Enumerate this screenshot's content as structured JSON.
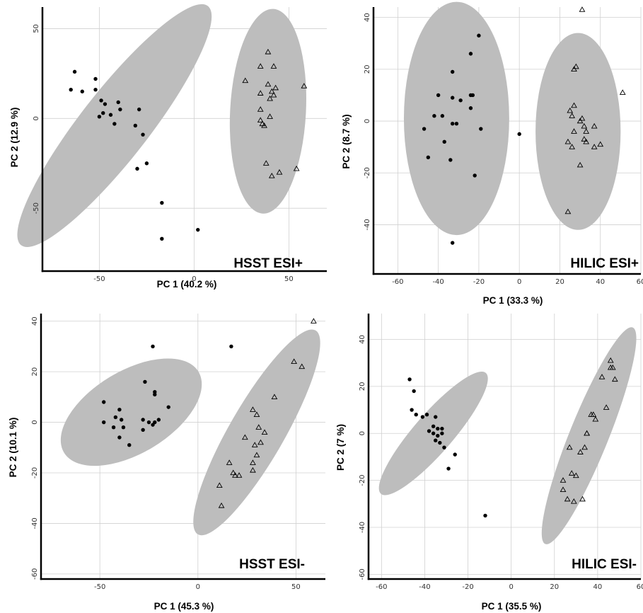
{
  "chart_data": [
    {
      "type": "scatter",
      "title": "HSST ESI+",
      "xlabel": "PC 1 (40.2 %)",
      "ylabel": "PC 2 (12.9 %)",
      "xlim": [
        -80,
        70
      ],
      "ylim": [
        -85,
        62
      ],
      "xticks": [
        -50,
        0,
        50
      ],
      "yticks": [
        -50,
        0,
        50
      ],
      "grid": true,
      "ellipse_color": "#bdbdbd",
      "series": [
        {
          "marker": "filled-circle",
          "points": [
            [
              -63,
              26
            ],
            [
              -65,
              16
            ],
            [
              -59,
              15
            ],
            [
              -52,
              16
            ],
            [
              -52,
              22
            ],
            [
              -49,
              10
            ],
            [
              -47,
              8
            ],
            [
              -48,
              3
            ],
            [
              -50,
              1
            ],
            [
              -44,
              2
            ],
            [
              -40,
              9
            ],
            [
              -39,
              5
            ],
            [
              -42,
              -3
            ],
            [
              -29,
              5
            ],
            [
              -31,
              -4
            ],
            [
              -27,
              -9
            ],
            [
              -30,
              -28
            ],
            [
              -25,
              -25
            ],
            [
              -17,
              -47
            ],
            [
              -17,
              -67
            ],
            [
              2,
              -62
            ]
          ]
        },
        {
          "marker": "open-triangle",
          "points": [
            [
              39,
              37
            ],
            [
              42,
              29
            ],
            [
              35,
              29
            ],
            [
              27,
              21
            ],
            [
              39,
              19
            ],
            [
              43,
              17
            ],
            [
              58,
              18
            ],
            [
              41,
              15
            ],
            [
              35,
              14
            ],
            [
              42,
              13
            ],
            [
              40,
              11
            ],
            [
              35,
              5
            ],
            [
              40,
              1
            ],
            [
              35,
              -1
            ],
            [
              36,
              -3
            ],
            [
              37,
              -4
            ],
            [
              38,
              -25
            ],
            [
              45,
              -30
            ],
            [
              41,
              -32
            ],
            [
              54,
              -28
            ]
          ]
        }
      ],
      "ellipses": [
        {
          "cx": -42,
          "cy": -4,
          "rx": 80,
          "ry": 18,
          "angle_deg": -52
        },
        {
          "cx": 39,
          "cy": 4,
          "rx": 54,
          "ry": 20,
          "angle_deg": -87
        }
      ]
    },
    {
      "type": "scatter",
      "title": "HILIC ESI+",
      "xlabel": "PC 1 (33.3 %)",
      "ylabel": "PC 2 (8.7 %)",
      "xlim": [
        -72,
        60
      ],
      "ylim": [
        -59,
        44
      ],
      "xticks": [
        -60,
        -40,
        -20,
        0,
        20,
        40,
        60
      ],
      "xticklabels": [
        "-60",
        "-40",
        "-20",
        "0",
        "20",
        "40",
        "60"
      ],
      "yticks": [
        -40,
        -20,
        0,
        20,
        40
      ],
      "grid": true,
      "ellipse_color": "#bdbdbd",
      "series": [
        {
          "marker": "filled-circle",
          "points": [
            [
              -20,
              33
            ],
            [
              -24,
              26
            ],
            [
              -33,
              19
            ],
            [
              -24,
              10
            ],
            [
              -23,
              10
            ],
            [
              -40,
              10
            ],
            [
              -33,
              9
            ],
            [
              -29,
              8
            ],
            [
              -42,
              2
            ],
            [
              -38,
              2
            ],
            [
              -33,
              -1
            ],
            [
              -31,
              -1
            ],
            [
              -24,
              5
            ],
            [
              -19,
              -3
            ],
            [
              -47,
              -3
            ],
            [
              -37,
              -8
            ],
            [
              -45,
              -14
            ],
            [
              -34,
              -15
            ],
            [
              -22,
              -21
            ],
            [
              -33,
              -47
            ],
            [
              0,
              -5
            ]
          ]
        },
        {
          "marker": "open-triangle",
          "points": [
            [
              31,
              43
            ],
            [
              51,
              11
            ],
            [
              28,
              21
            ],
            [
              27,
              20
            ],
            [
              27,
              6
            ],
            [
              25,
              4
            ],
            [
              26,
              2
            ],
            [
              31,
              1
            ],
            [
              30,
              0
            ],
            [
              37,
              -2
            ],
            [
              32,
              -2
            ],
            [
              33,
              -4
            ],
            [
              27,
              -4
            ],
            [
              40,
              -9
            ],
            [
              32,
              -7
            ],
            [
              33,
              -8
            ],
            [
              24,
              -8
            ],
            [
              37,
              -10
            ],
            [
              26,
              -10
            ],
            [
              30,
              -17
            ],
            [
              24,
              -35
            ]
          ]
        }
      ],
      "ellipses": [
        {
          "cx": -31,
          "cy": 1,
          "rx": 26,
          "ry": 45,
          "angle_deg": 0
        },
        {
          "cx": 29,
          "cy": -4,
          "rx": 21,
          "ry": 38,
          "angle_deg": 0
        }
      ]
    },
    {
      "type": "scatter",
      "title": "HSST ESI-",
      "xlabel": "PC 1 (45.3 %)",
      "ylabel": "PC 2 (10.1 %)",
      "xlim": [
        -80,
        65
      ],
      "ylim": [
        -62,
        43
      ],
      "xticks": [
        -50,
        0,
        50
      ],
      "yticks": [
        -60,
        -40,
        -20,
        0,
        20,
        40
      ],
      "grid": true,
      "ellipse_color": "#bdbdbd",
      "series": [
        {
          "marker": "filled-circle",
          "points": [
            [
              -23,
              30
            ],
            [
              17,
              30
            ],
            [
              -27,
              16
            ],
            [
              -22,
              12
            ],
            [
              -22,
              11
            ],
            [
              -48,
              8
            ],
            [
              -15,
              6
            ],
            [
              -40,
              5
            ],
            [
              -42,
              2
            ],
            [
              -39,
              1
            ],
            [
              -28,
              1
            ],
            [
              -20,
              1
            ],
            [
              -22,
              0
            ],
            [
              -25,
              0
            ],
            [
              -48,
              0
            ],
            [
              -23,
              -1
            ],
            [
              -38,
              -2
            ],
            [
              -43,
              -2
            ],
            [
              -28,
              -3
            ],
            [
              -40,
              -6
            ],
            [
              -35,
              -9
            ]
          ]
        },
        {
          "marker": "open-triangle",
          "points": [
            [
              59,
              40
            ],
            [
              49,
              24
            ],
            [
              53,
              22
            ],
            [
              39,
              10
            ],
            [
              28,
              5
            ],
            [
              30,
              3
            ],
            [
              31,
              -2
            ],
            [
              34,
              -4
            ],
            [
              24,
              -6
            ],
            [
              32,
              -8
            ],
            [
              29,
              -9
            ],
            [
              30,
              -13
            ],
            [
              28,
              -16
            ],
            [
              16,
              -16
            ],
            [
              28,
              -19
            ],
            [
              18,
              -20
            ],
            [
              19,
              -21
            ],
            [
              21,
              -21
            ],
            [
              11,
              -25
            ],
            [
              12,
              -33
            ]
          ]
        }
      ],
      "ellipses": [
        {
          "cx": -34,
          "cy": 4,
          "rx": 40,
          "ry": 21,
          "angle_deg": -31
        },
        {
          "cx": 30,
          "cy": -4,
          "rx": 60,
          "ry": 14,
          "angle_deg": -60
        }
      ]
    },
    {
      "type": "scatter",
      "title": "HILIC ESI-",
      "xlabel": "PC 1 (35.5 %)",
      "ylabel": "PC 2 (7 %)",
      "xlim": [
        -66,
        60
      ],
      "ylim": [
        -62,
        51
      ],
      "xticks": [
        -60,
        -40,
        -20,
        0,
        20,
        40,
        60
      ],
      "xticklabels": [
        "-60",
        "-40",
        "-20",
        "0",
        "20",
        "40",
        "60"
      ],
      "yticks": [
        -60,
        -40,
        -20,
        0,
        20,
        40
      ],
      "grid": true,
      "ellipse_color": "#bdbdbd",
      "series": [
        {
          "marker": "filled-circle",
          "points": [
            [
              -47,
              23
            ],
            [
              -45,
              18
            ],
            [
              -46,
              10
            ],
            [
              -44,
              8
            ],
            [
              -41,
              7
            ],
            [
              -39,
              8
            ],
            [
              -35,
              7
            ],
            [
              -36,
              3
            ],
            [
              -38,
              1
            ],
            [
              -34,
              2
            ],
            [
              -36,
              0
            ],
            [
              -32,
              2
            ],
            [
              -32,
              0
            ],
            [
              -34,
              -1
            ],
            [
              -35,
              -3
            ],
            [
              -33,
              -4
            ],
            [
              -31,
              -6
            ],
            [
              -26,
              -9
            ],
            [
              -29,
              -15
            ],
            [
              -12,
              -35
            ]
          ]
        },
        {
          "marker": "open-triangle",
          "points": [
            [
              46,
              31
            ],
            [
              47,
              28
            ],
            [
              46,
              28
            ],
            [
              48,
              23
            ],
            [
              42,
              24
            ],
            [
              44,
              11
            ],
            [
              38,
              8
            ],
            [
              37,
              8
            ],
            [
              39,
              6
            ],
            [
              35,
              0
            ],
            [
              35,
              0
            ],
            [
              32,
              -8
            ],
            [
              34,
              -6
            ],
            [
              27,
              -6
            ],
            [
              24,
              -20
            ],
            [
              24,
              -24
            ],
            [
              28,
              -17
            ],
            [
              30,
              -18
            ],
            [
              26,
              -28
            ],
            [
              29,
              -29
            ],
            [
              33,
              -28
            ]
          ]
        }
      ],
      "ellipses": [
        {
          "cx": -36,
          "cy": 0,
          "rx": 37,
          "ry": 9,
          "angle_deg": -49
        },
        {
          "cx": 36,
          "cy": -1,
          "rx": 54,
          "ry": 9,
          "angle_deg": -68
        }
      ]
    }
  ]
}
